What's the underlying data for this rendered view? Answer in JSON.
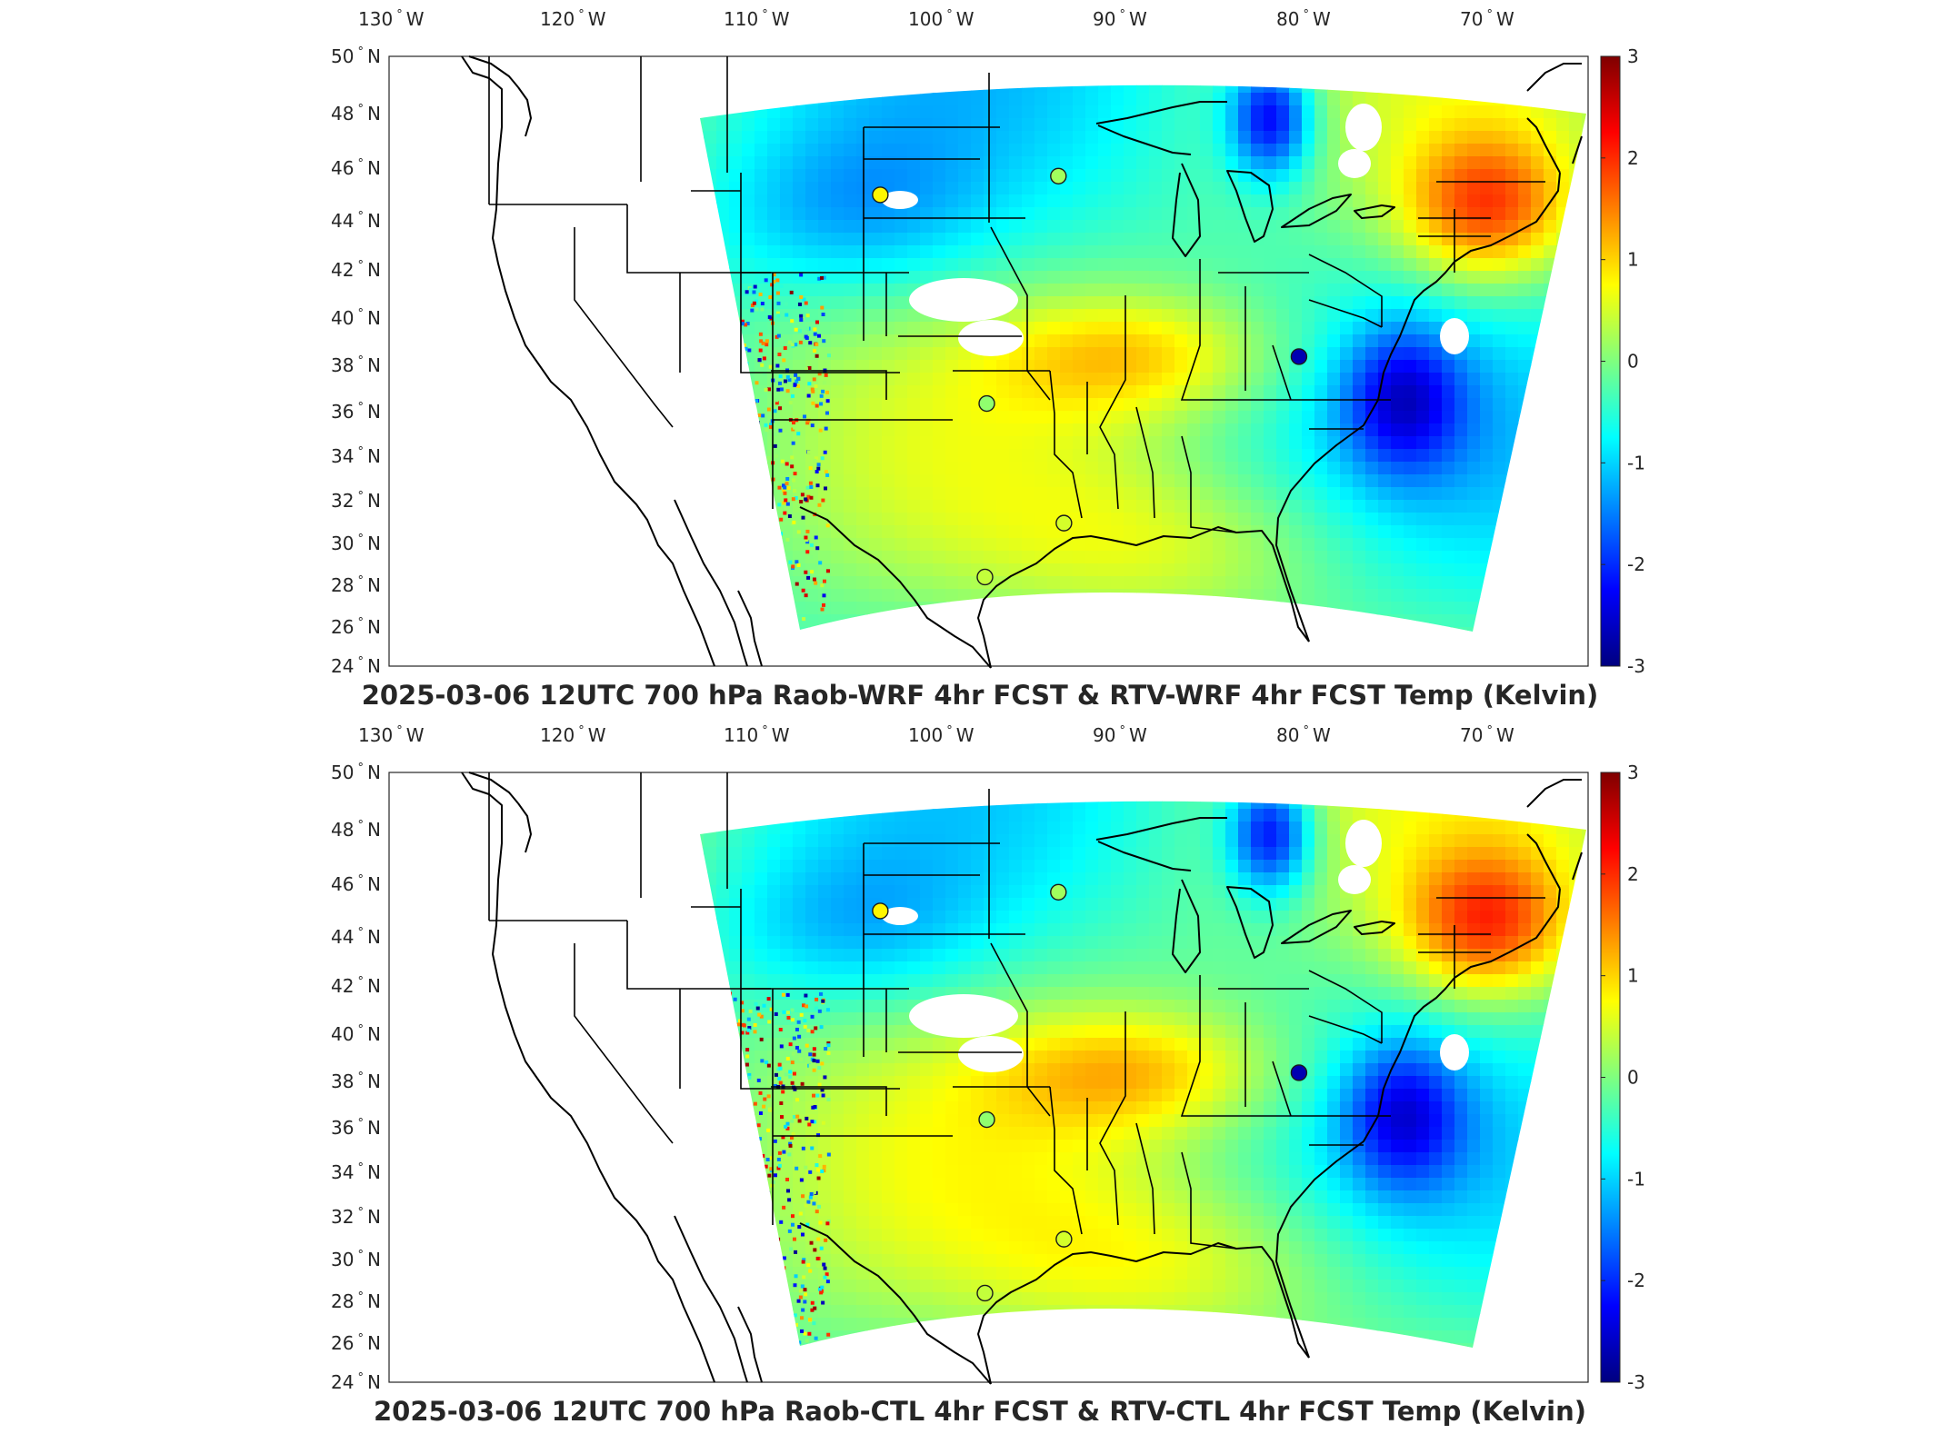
{
  "lon_ticks": [
    "130",
    "120",
    "110",
    "100",
    "90",
    "80",
    "70"
  ],
  "lon_suffix": "W",
  "lat_ticks": [
    "50",
    "48",
    "46",
    "44",
    "42",
    "40",
    "38",
    "36",
    "34",
    "32",
    "30",
    "28",
    "26",
    "24"
  ],
  "lat_suffix": "N",
  "colorbar": {
    "ticks": [
      "3",
      "2",
      "1",
      "0",
      "-1",
      "-2",
      "-3"
    ],
    "min": -3,
    "max": 3,
    "colormap": [
      "#00007f",
      "#0000ff",
      "#007fff",
      "#00ffff",
      "#7fff7f",
      "#ffff00",
      "#ff7f00",
      "#ff0000",
      "#7f0000"
    ]
  },
  "panels": [
    {
      "title": "2025-03-06 12UTC 700 hPa Raob-WRF 4hr FCST & RTV-WRF 4hr FCST Temp (Kelvin)",
      "raob_stations": [
        {
          "name_hint": "upper-midwest",
          "lon": -93.5,
          "lat": 44.9,
          "value": 0.2
        },
        {
          "name_hint": "rapid-city",
          "lon": -103.2,
          "lat": 44.1,
          "value": 0.8
        },
        {
          "name_hint": "oklahoma",
          "lon": -97.4,
          "lat": 35.2,
          "value": 0.1
        },
        {
          "name_hint": "lake-charles",
          "lon": -93.2,
          "lat": 30.1,
          "value": 0.5
        },
        {
          "name_hint": "corpus-christi",
          "lon": -97.5,
          "lat": 27.8,
          "value": 0.4
        },
        {
          "name_hint": "blacksburg",
          "lon": -80.4,
          "lat": 37.2,
          "value": -2.7
        }
      ]
    },
    {
      "title": "2025-03-06 12UTC 700 hPa Raob-CTL 4hr FCST & RTV-CTL 4hr FCST Temp (Kelvin)",
      "raob_stations": [
        {
          "name_hint": "upper-midwest",
          "lon": -93.5,
          "lat": 44.9,
          "value": 0.2
        },
        {
          "name_hint": "rapid-city",
          "lon": -103.2,
          "lat": 44.1,
          "value": 0.8
        },
        {
          "name_hint": "oklahoma",
          "lon": -97.4,
          "lat": 35.2,
          "value": 0.1
        },
        {
          "name_hint": "lake-charles",
          "lon": -93.2,
          "lat": 30.1,
          "value": 0.5
        },
        {
          "name_hint": "corpus-christi",
          "lon": -97.5,
          "lat": 27.8,
          "value": 0.4
        },
        {
          "name_hint": "blacksburg",
          "lon": -80.4,
          "lat": 37.2,
          "value": -2.7
        }
      ]
    }
  ]
}
